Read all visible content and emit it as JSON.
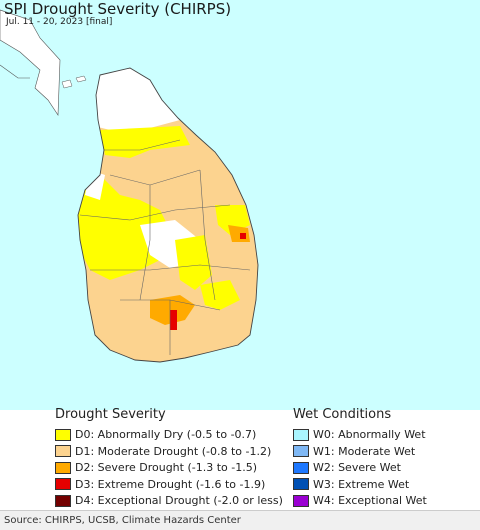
{
  "map": {
    "title": "SPI Drought Severity (CHIRPS)",
    "subtitle": "Jul. 11 - 20, 2023 [final]",
    "country": "Sri Lanka",
    "colors": {
      "ocean": "#ccffff",
      "no_drought": "#ffffff",
      "border": "#555555"
    }
  },
  "legend": {
    "drought_title": "Drought Severity",
    "drought_items": [
      {
        "label": "D0: Abnormally Dry (-0.5 to -0.7)",
        "color": "#ffff00"
      },
      {
        "label": "D1: Moderate Drought (-0.8 to -1.2)",
        "color": "#fcd38f"
      },
      {
        "label": "D2: Severe Drought (-1.3 to -1.5)",
        "color": "#ffaa00"
      },
      {
        "label": "D3: Extreme Drought (-1.6 to -1.9)",
        "color": "#e60000"
      },
      {
        "label": "D4: Exceptional Drought (-2.0 or less)",
        "color": "#730000"
      }
    ],
    "wet_title": "Wet Conditions",
    "wet_items": [
      {
        "label": "W0: Abnormally Wet",
        "color": "#aaf5ff"
      },
      {
        "label": "W1: Moderate Wet",
        "color": "#7fb8f5"
      },
      {
        "label": "W2: Severe Wet",
        "color": "#1e78ff"
      },
      {
        "label": "W3: Extreme Wet",
        "color": "#0050b4"
      },
      {
        "label": "W4: Exceptional Wet",
        "color": "#9a00d2"
      }
    ]
  },
  "footer": {
    "source": "Source: CHIRPS, UCSB, Climate Hazards Center"
  }
}
